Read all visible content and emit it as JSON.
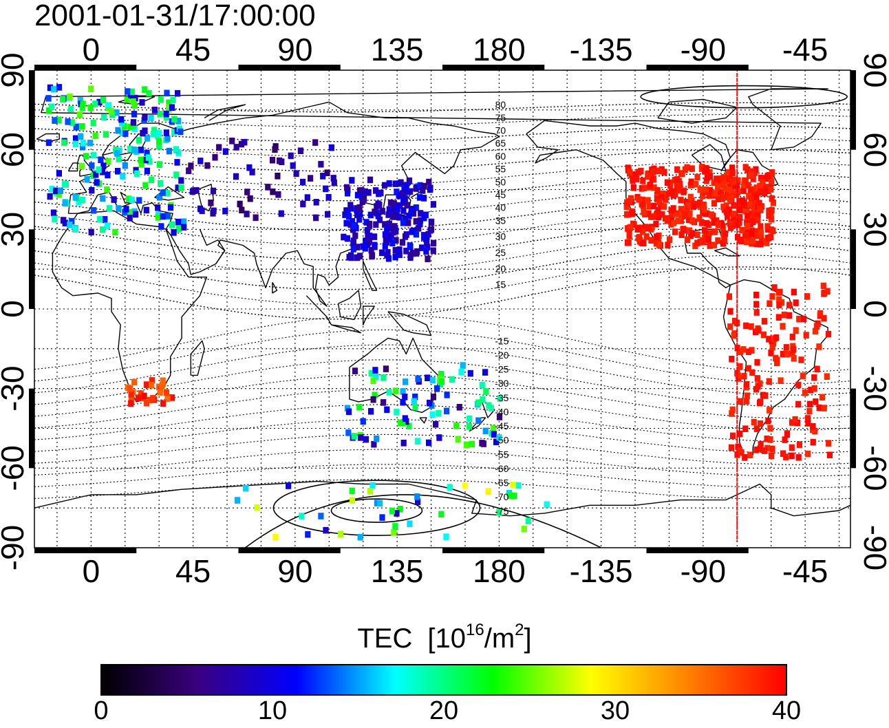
{
  "timestamp": "2001-01-31/17:00:00",
  "map": {
    "projection": "equirectangular",
    "lon_range_deg": [
      -25,
      335
    ],
    "lat_range_deg": [
      -90,
      90
    ],
    "top_lon_ticks": [
      "0",
      "45",
      "90",
      "135",
      "180",
      "-135",
      "-90",
      "-45"
    ],
    "bottom_lon_ticks": [
      "0",
      "45",
      "90",
      "135",
      "180",
      "-135",
      "-90",
      "-45"
    ],
    "lat_ticks": [
      "90",
      "60",
      "30",
      "0",
      "-30",
      "-60",
      "-90"
    ],
    "grid": "dotted, every 15 degrees",
    "coastlines": "thin black lines",
    "contour_labels_north": [
      "80",
      "75",
      "70",
      "65",
      "60",
      "55",
      "50",
      "45",
      "40",
      "35",
      "30",
      "25",
      "20",
      "15"
    ],
    "contour_labels_south": [
      "-15",
      "-20",
      "-25",
      "-30",
      "-35",
      "-40",
      "-45",
      "-50",
      "-55",
      "-60",
      "-65",
      "-70",
      "-75"
    ],
    "marker_line": {
      "lon_deg": -75,
      "color": "#ff0000"
    },
    "tec_regions": [
      {
        "region": "europe",
        "lon": [
          -20,
          40
        ],
        "lat": [
          30,
          85
        ],
        "tec": [
          8,
          25
        ]
      },
      {
        "region": "north america",
        "lon": [
          -125,
          -60
        ],
        "lat": [
          25,
          55
        ],
        "tec": [
          38,
          40
        ]
      },
      {
        "region": "east asia",
        "lon": [
          110,
          150
        ],
        "lat": [
          20,
          50
        ],
        "tec": [
          6,
          12
        ]
      },
      {
        "region": "south america",
        "lon": [
          -80,
          -35
        ],
        "lat": [
          -55,
          10
        ],
        "tec": [
          38,
          40
        ]
      },
      {
        "region": "southern africa",
        "lon": [
          15,
          35
        ],
        "lat": [
          -35,
          -25
        ],
        "tec": [
          35,
          40
        ]
      },
      {
        "region": "australia / new zealand",
        "lon": [
          110,
          180
        ],
        "lat": [
          -50,
          -20
        ],
        "tec": [
          5,
          25
        ]
      },
      {
        "region": "antarctica",
        "lon": [
          60,
          200
        ],
        "lat": [
          -85,
          -65
        ],
        "tec": [
          8,
          30
        ]
      },
      {
        "region": "siberia / central asia",
        "lon": [
          40,
          110
        ],
        "lat": [
          35,
          65
        ],
        "tec": [
          4,
          10
        ]
      }
    ]
  },
  "colorbar": {
    "label": "TEC",
    "unit_base": "10",
    "unit_exp": "16",
    "unit_slash": "/m",
    "unit_exp2": "2",
    "min": 0,
    "max": 40,
    "ticks": [
      "0",
      "10",
      "20",
      "30",
      "40"
    ],
    "colormap": [
      "#000000",
      "#3a0080",
      "#0000ff",
      "#00ffff",
      "#00ff00",
      "#ffff00",
      "#ff8000",
      "#ff0000"
    ]
  }
}
